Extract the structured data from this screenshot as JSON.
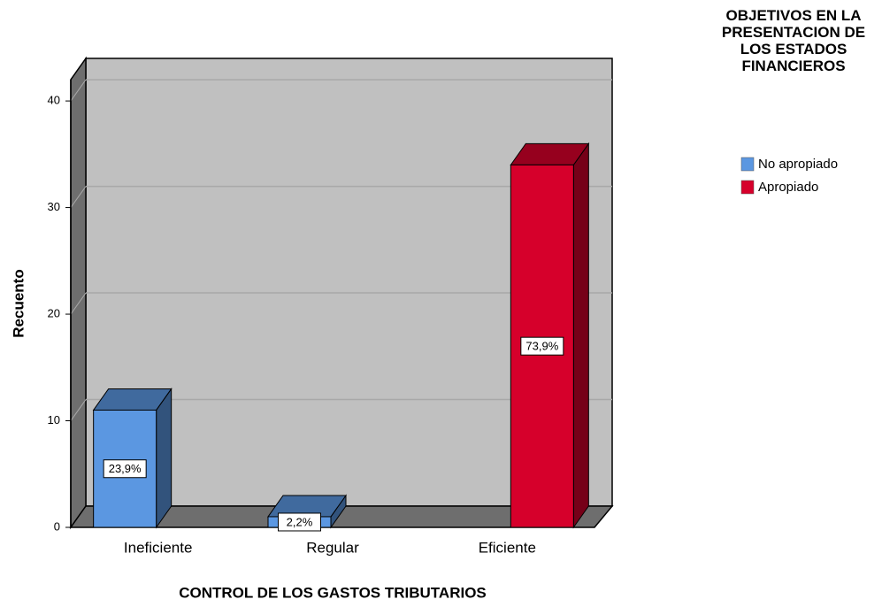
{
  "chart_data": {
    "type": "bar3d",
    "y_label": "Recuento",
    "x_label": "CONTROL DE LOS GASTOS TRIBUTARIOS",
    "legend_title": "OBJETIVOS EN LA PRESENTACION DE LOS ESTADOS FINANCIEROS",
    "categories": [
      "Ineficiente",
      "Regular",
      "Eficiente"
    ],
    "series": [
      {
        "name": "No apropiado",
        "color": "#5b97e1",
        "values": [
          11,
          1,
          null
        ],
        "percents": [
          23.9,
          2.2,
          null
        ],
        "percent_labels": [
          "23,9%",
          "2,2%",
          null
        ]
      },
      {
        "name": "Apropiado",
        "color": "#d6002b",
        "values": [
          null,
          null,
          34
        ],
        "percents": [
          null,
          null,
          73.9
        ],
        "percent_labels": [
          null,
          null,
          "73,9%"
        ]
      }
    ],
    "ylim": [
      0,
      42
    ],
    "yticks": [
      0,
      10,
      20,
      30,
      40
    ],
    "grid": true,
    "legend": "right"
  }
}
